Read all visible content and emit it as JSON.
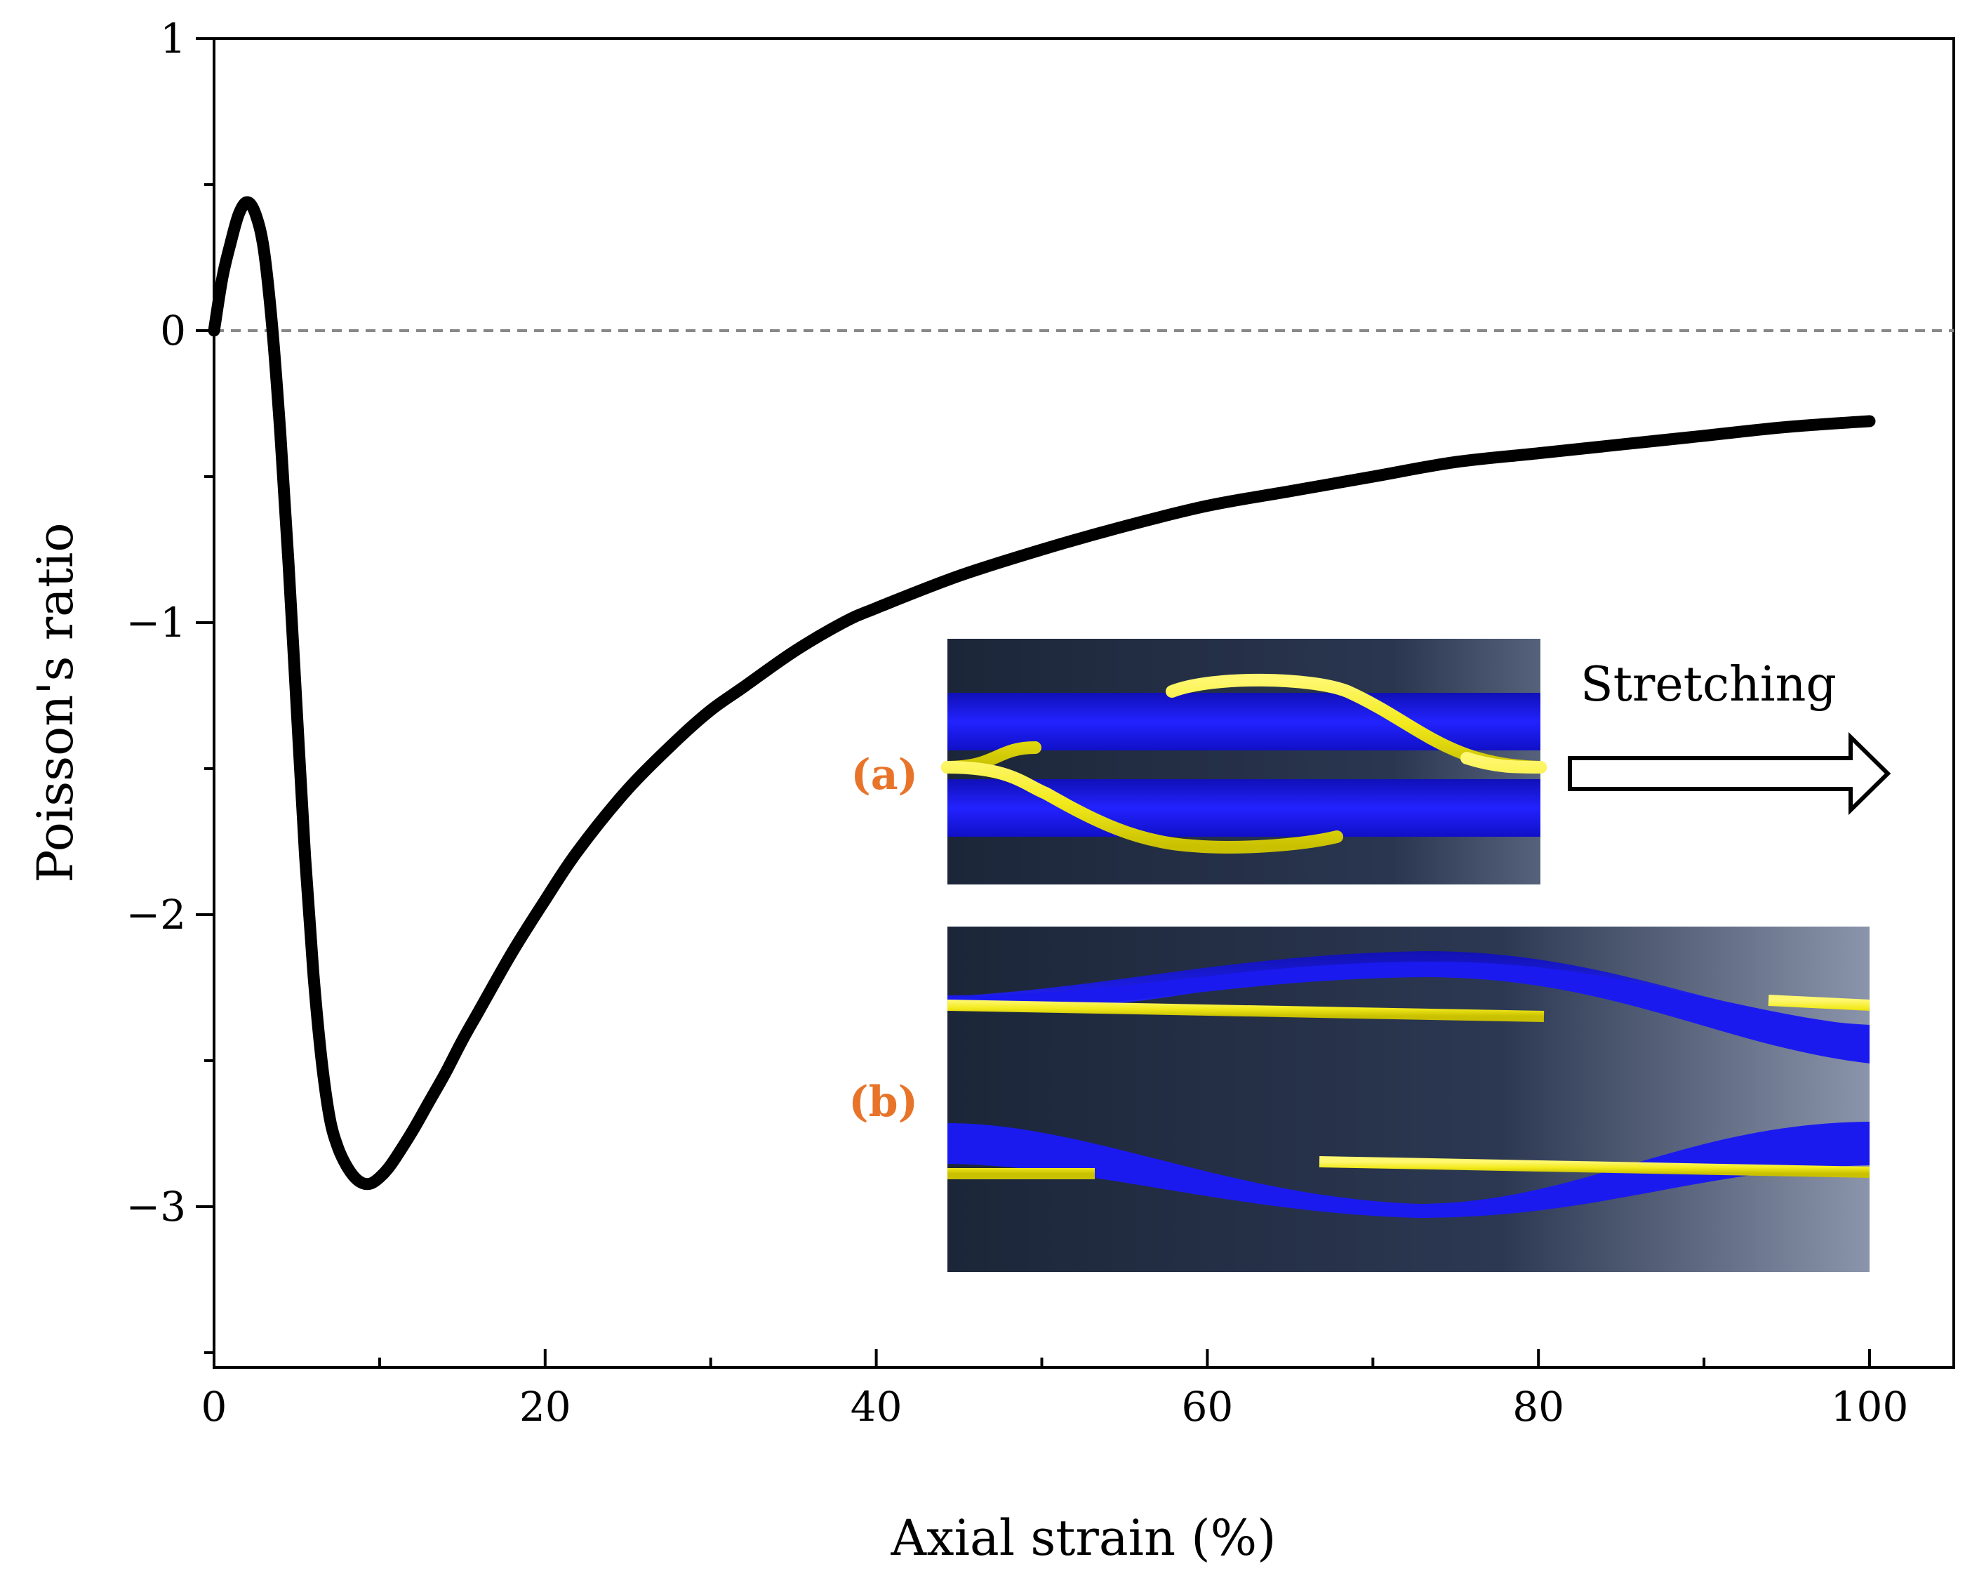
{
  "colors": {
    "curve": "#000000",
    "zero_line": "#888888",
    "inset_tag": "#E8742A",
    "fiber_yellow": "#F2EA1C",
    "fiber_blue": "#1A1AEF",
    "inset_bg_dark": "#1F2A40",
    "inset_bg_light": "#8A94AA"
  },
  "chart_data": {
    "type": "line",
    "title": "",
    "xlabel": "Axial strain (%)",
    "ylabel": "Poisson's ratio",
    "xlim": [
      0,
      105
    ],
    "ylim": [
      -3.5,
      1
    ],
    "x_ticks": [
      0,
      20,
      40,
      60,
      80,
      100
    ],
    "x_tick_labels": [
      "0",
      "20",
      "40",
      "60",
      "80",
      "100"
    ],
    "y_ticks": [
      1,
      0,
      -1,
      -2,
      -3
    ],
    "y_tick_labels": [
      "1",
      "0",
      "−1",
      "−2",
      "−3"
    ],
    "reference_line": {
      "y": 0,
      "style": "dashed"
    },
    "grid": false,
    "series": [
      {
        "name": "Poisson's ratio",
        "x": [
          0,
          0.5,
          1,
          1.5,
          2,
          2.5,
          3,
          3.5,
          4,
          4.5,
          5,
          5.5,
          6,
          6.5,
          7,
          7.5,
          8,
          8.5,
          9,
          9.5,
          10,
          10.5,
          11,
          12,
          13,
          14,
          15,
          16,
          18,
          20,
          22,
          25,
          28,
          30,
          32,
          35,
          38,
          40,
          45,
          50,
          55,
          60,
          65,
          70,
          75,
          80,
          85,
          90,
          95,
          100
        ],
        "y": [
          0.0,
          0.18,
          0.3,
          0.4,
          0.44,
          0.4,
          0.28,
          0.02,
          -0.35,
          -0.8,
          -1.3,
          -1.8,
          -2.2,
          -2.5,
          -2.7,
          -2.8,
          -2.86,
          -2.9,
          -2.92,
          -2.92,
          -2.9,
          -2.87,
          -2.83,
          -2.74,
          -2.64,
          -2.54,
          -2.43,
          -2.33,
          -2.13,
          -1.95,
          -1.78,
          -1.57,
          -1.4,
          -1.3,
          -1.22,
          -1.1,
          -1.0,
          -0.95,
          -0.84,
          -0.75,
          -0.67,
          -0.6,
          -0.55,
          -0.5,
          -0.45,
          -0.42,
          -0.39,
          -0.36,
          -0.33,
          -0.31
        ]
      }
    ]
  },
  "insets": {
    "a": {
      "tag": "(a)"
    },
    "b": {
      "tag": "(b)"
    },
    "stretch_label": "Stretching"
  }
}
